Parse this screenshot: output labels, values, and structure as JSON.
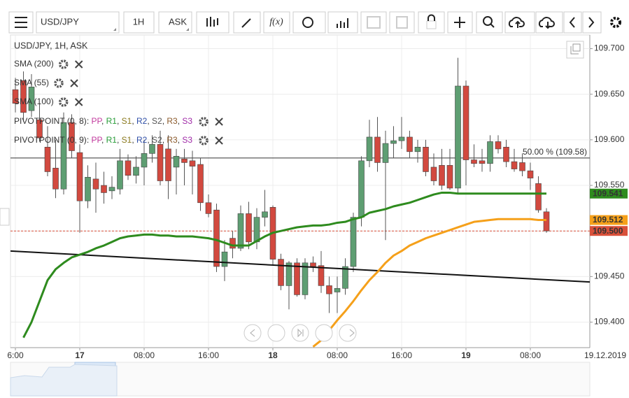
{
  "toolbar": {
    "symbol": "USD/JPY",
    "interval": "1H",
    "side": "ASK",
    "fx": "f(x)"
  },
  "chart_data": {
    "type": "candlestick",
    "header": "USD/JPY, 1H, ASK",
    "up_color": "#5e9e72",
    "down_color": "#d2493f",
    "categories": [
      "6:00",
      null,
      null,
      null,
      null,
      null,
      null,
      null,
      "17",
      null,
      null,
      null,
      null,
      null,
      null,
      null,
      "08:00",
      null,
      null,
      null,
      null,
      null,
      null,
      null,
      "16:00",
      null,
      null,
      null,
      null,
      null,
      null,
      null,
      "18",
      null,
      null,
      null,
      null,
      null,
      null,
      null,
      "08:00",
      null,
      null,
      null,
      null,
      null,
      null,
      null,
      "16:00",
      null,
      null,
      null,
      null,
      null,
      null,
      null,
      "19",
      null,
      null,
      null,
      null,
      null,
      null,
      null,
      "08:00",
      null,
      null
    ],
    "date_label": "19.12.2019",
    "candles": {
      "open": [
        109.655,
        109.665,
        109.632,
        109.622,
        109.592,
        109.569,
        109.546,
        109.619,
        109.586,
        109.533,
        109.557,
        109.55,
        109.544,
        109.546,
        109.577,
        109.561,
        109.57,
        109.585,
        109.595,
        109.59,
        109.57,
        109.579,
        109.577,
        109.573,
        109.531,
        109.523,
        109.461,
        109.492,
        109.481,
        109.519,
        109.488,
        109.515,
        109.526,
        109.469,
        109.44,
        109.465,
        109.43,
        109.465,
        109.462,
        109.44,
        109.433,
        109.437,
        109.461,
        109.515,
        109.577,
        109.603,
        109.575,
        109.596,
        109.599,
        109.603,
        109.587,
        109.592,
        109.57,
        109.572,
        109.572,
        109.547,
        109.659,
        109.578,
        109.577,
        109.574,
        109.598,
        109.592,
        109.576,
        109.575,
        109.566,
        109.552,
        109.521
      ],
      "high": [
        109.668,
        109.675,
        109.672,
        109.64,
        109.615,
        109.6,
        109.63,
        109.628,
        109.595,
        109.572,
        109.575,
        109.565,
        109.56,
        109.59,
        109.584,
        109.582,
        109.6,
        109.605,
        109.61,
        109.605,
        109.59,
        109.59,
        109.588,
        109.58,
        109.54,
        109.53,
        109.49,
        109.5,
        109.528,
        109.532,
        109.525,
        109.545,
        109.528,
        109.475,
        109.467,
        109.47,
        109.47,
        109.472,
        109.478,
        109.45,
        109.45,
        109.47,
        109.52,
        109.582,
        109.622,
        109.625,
        109.61,
        109.615,
        109.625,
        109.61,
        109.6,
        109.6,
        109.585,
        109.59,
        109.59,
        109.69,
        109.665,
        109.595,
        109.59,
        109.605,
        109.605,
        109.6,
        109.59,
        109.585,
        109.575,
        109.56,
        109.525
      ],
      "low": [
        109.63,
        109.62,
        109.625,
        109.598,
        109.56,
        109.536,
        109.54,
        109.58,
        109.498,
        109.525,
        109.52,
        109.53,
        109.535,
        109.54,
        109.556,
        109.552,
        109.55,
        109.575,
        109.55,
        109.535,
        109.54,
        109.55,
        109.54,
        109.522,
        109.515,
        109.455,
        109.445,
        109.47,
        109.478,
        109.48,
        109.48,
        109.505,
        109.462,
        109.435,
        109.414,
        109.428,
        109.425,
        109.455,
        109.432,
        109.41,
        109.41,
        109.43,
        109.455,
        109.505,
        109.57,
        109.565,
        109.49,
        109.58,
        109.59,
        109.58,
        109.575,
        109.56,
        109.55,
        109.545,
        109.545,
        109.54,
        109.55,
        109.57,
        109.565,
        109.565,
        109.585,
        109.57,
        109.565,
        109.56,
        109.545,
        109.52,
        109.498
      ],
      "close": [
        109.64,
        109.63,
        109.658,
        109.602,
        109.565,
        109.546,
        109.619,
        109.588,
        109.533,
        109.559,
        109.546,
        109.542,
        109.548,
        109.577,
        109.561,
        109.57,
        109.585,
        109.595,
        109.555,
        109.555,
        109.582,
        109.575,
        109.571,
        109.531,
        109.519,
        109.461,
        109.477,
        109.481,
        109.519,
        109.488,
        109.515,
        109.521,
        109.469,
        109.44,
        109.465,
        109.43,
        109.465,
        109.461,
        109.44,
        109.431,
        109.437,
        109.461,
        109.515,
        109.577,
        109.603,
        109.575,
        109.596,
        109.599,
        109.603,
        109.587,
        109.592,
        109.565,
        109.555,
        109.55,
        109.547,
        109.659,
        109.578,
        109.574,
        109.574,
        109.598,
        109.59,
        109.576,
        109.568,
        109.566,
        109.558,
        109.523,
        109.5
      ]
    },
    "series": [
      {
        "name": "SMA (200)",
        "color": "#b8322a"
      },
      {
        "name": "SMA (55)",
        "color": "#2e8b1e",
        "last_label": "109.541",
        "values": [
          null,
          109.383,
          109.4,
          109.423,
          109.446,
          109.458,
          109.465,
          109.471,
          109.474,
          109.477,
          109.481,
          109.484,
          109.488,
          109.492,
          109.494,
          109.495,
          109.496,
          109.496,
          109.495,
          109.495,
          109.494,
          109.494,
          109.494,
          109.493,
          109.492,
          109.49,
          109.487,
          109.484,
          109.484,
          109.484,
          109.489,
          109.494,
          109.498,
          109.5,
          109.502,
          109.504,
          109.505,
          109.506,
          109.506,
          109.507,
          109.509,
          109.51,
          109.513,
          109.515,
          109.52,
          109.522,
          109.524,
          109.527,
          109.529,
          109.531,
          109.534,
          109.537,
          109.54,
          109.542,
          109.542,
          109.541,
          109.541,
          109.541,
          109.541,
          109.541,
          109.541,
          109.541,
          109.541,
          109.541,
          109.541,
          109.541,
          109.541
        ]
      },
      {
        "name": "SMA (100)",
        "color": "#f5a01a",
        "last_label": "109.512",
        "values": [
          null,
          null,
          null,
          null,
          null,
          null,
          null,
          null,
          null,
          null,
          null,
          null,
          null,
          null,
          null,
          null,
          null,
          null,
          null,
          null,
          null,
          null,
          null,
          null,
          null,
          null,
          null,
          null,
          null,
          null,
          null,
          null,
          null,
          null,
          null,
          null,
          null,
          109.373,
          109.38,
          109.391,
          109.402,
          109.412,
          109.423,
          109.435,
          109.446,
          109.455,
          109.465,
          109.473,
          109.478,
          109.484,
          109.488,
          109.492,
          109.495,
          109.498,
          109.501,
          109.504,
          109.507,
          109.51,
          109.511,
          109.512,
          109.513,
          109.513,
          109.513,
          109.513,
          109.513,
          109.512,
          109.512
        ]
      }
    ],
    "pivots": [
      {
        "name": "PIVOTPOINT (0, 8)",
        "lead": ": ",
        "separator": ", ",
        "levels": [
          {
            "name": "PP",
            "color": "#c23a9e"
          },
          {
            "name": "R1",
            "color": "#2a9d3a"
          },
          {
            "name": "S1",
            "color": "#8b7a1e"
          },
          {
            "name": "R2",
            "color": "#2f4fa8"
          },
          {
            "name": "S2",
            "color": "#555555"
          },
          {
            "name": "R3",
            "color": "#8b5a2b"
          },
          {
            "name": "S3",
            "color": "#a02aa8"
          }
        ]
      },
      {
        "name": "PIVOTPOINT (0, 9)",
        "lead": ": ",
        "separator": ", ",
        "levels": [
          {
            "name": "PP",
            "color": "#c23a9e"
          },
          {
            "name": "R1",
            "color": "#2a9d3a"
          },
          {
            "name": "S1",
            "color": "#8b7a1e"
          },
          {
            "name": "R2",
            "color": "#2f4fa8"
          },
          {
            "name": "S2",
            "color": "#555555"
          },
          {
            "name": "R3",
            "color": "#8b5a2b"
          },
          {
            "name": "S3",
            "color": "#a02aa8"
          }
        ]
      }
    ],
    "trendline": [
      109.478,
      109.444
    ],
    "fib_line": {
      "value": 109.58,
      "label": "50.00 % (109.58)"
    },
    "price_line": {
      "value": 109.5,
      "label": "109.500",
      "color": "#d9503a"
    },
    "ylim": [
      109.372,
      109.715
    ],
    "yticks": [
      {
        "value": 109.4,
        "label": "109.400"
      },
      {
        "value": 109.45,
        "label": "109.450"
      },
      {
        "value": 109.5,
        "label": "109.500"
      },
      {
        "value": 109.55,
        "label": "109.550"
      },
      {
        "value": 109.6,
        "label": "109.600"
      },
      {
        "value": 109.65,
        "label": "109.650"
      },
      {
        "value": 109.7,
        "label": "109.700"
      }
    ],
    "grid": true
  }
}
